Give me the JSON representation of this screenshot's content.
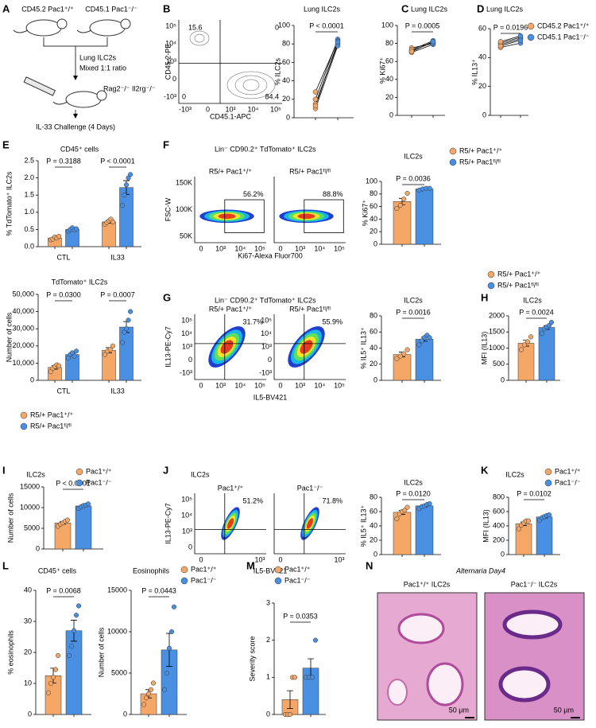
{
  "panel_letters": [
    "A",
    "B",
    "C",
    "D",
    "E",
    "F",
    "G",
    "H",
    "I",
    "J",
    "K",
    "L",
    "M",
    "N"
  ],
  "diagram": {
    "labels": [
      "CD45.2 Pac1⁺/⁺",
      "CD45.1 Pac1⁻/⁻",
      "Lung ILC2s",
      "Mixed 1:1 ratio",
      "Rag2⁻/⁻ Il2rg⁻/⁻",
      "IL-33 Challenge (4 Days)"
    ]
  },
  "flow": [
    {
      "y_label": "CD45.2-PE",
      "x_label": "CD45.1-APC",
      "yticks": [
        "10⁵",
        "10⁴",
        "10³",
        "0",
        "-10³"
      ],
      "xticks": [
        "-10³",
        "0",
        "10³",
        "10⁴",
        "10⁵"
      ],
      "plots": [
        {
          "gates": [
            "15.6",
            "0",
            "0",
            "84.4"
          ]
        }
      ]
    },
    {
      "title": "Lin⁻ CD90.2⁺ TdTomato⁺ ILC2s",
      "y_label": "FSC-W",
      "x_label": "Ki67-Alexa Fluor700",
      "yticks": [
        "150K",
        "100K",
        "50K"
      ],
      "xticks": [
        "0",
        "10³",
        "10⁴",
        "10⁵"
      ],
      "plots": [
        {
          "title": "R5/+ Pac1⁺/⁺",
          "gates": [
            "56.2%"
          ]
        },
        {
          "title": "R5/+ Pac1ᶠˡ/ᶠˡ",
          "gates": [
            "88.8%"
          ]
        }
      ]
    },
    {
      "title": "Lin⁻ CD90.2⁺ TdTomato⁺ ILC2s",
      "y_label": "IL13-PE-Cy7",
      "x_label": "IL5-BV421",
      "yticks": [
        "10⁵",
        "10⁴",
        "10³",
        "0",
        "-10³"
      ],
      "xticks": [
        "0",
        "10³",
        "10⁴",
        "10⁵"
      ],
      "plots": [
        {
          "title": "R5/+ Pac1⁺/⁺",
          "gates": [
            "31.7%"
          ]
        },
        {
          "title": "R5/+ Pac1ᶠˡ/ᶠˡ",
          "gates": [
            "55.9%"
          ]
        }
      ]
    },
    {
      "title": "ILC2s",
      "y_label": "IL13-PE-Cy7",
      "x_label": "IL5-BV421",
      "yticks": [
        "10⁵",
        "10⁴",
        "10³",
        "0"
      ],
      "xticks": [
        "0",
        "10³"
      ],
      "plots": [
        {
          "title": "Pac1⁺/⁺",
          "gates": [
            "51.2%"
          ]
        },
        {
          "title": "Pac1⁻/⁻",
          "gates": [
            "71.8%"
          ]
        }
      ]
    }
  ],
  "histology": {
    "title": "Alternaria Day4",
    "panels": [
      {
        "title": "Pac1⁺/⁺ ILC2s",
        "scale": "50 μm"
      },
      {
        "title": "Pac1⁻/⁻ ILC2s",
        "scale": "50 μm"
      }
    ]
  },
  "chart_data": [
    {
      "type": "paired",
      "title": "Lung ILC2s",
      "p_label": "P < 0.0001",
      "y_label": "% ILC2s",
      "ylim": [
        0,
        100
      ],
      "yticks": [
        0,
        20,
        40,
        60,
        80,
        100
      ],
      "series": [
        {
          "color": "#f4a767",
          "values": [
            15,
            20,
            28,
            10,
            13
          ]
        },
        {
          "color": "#4a90e2",
          "values": [
            80,
            85,
            83,
            78,
            82
          ]
        }
      ]
    },
    {
      "type": "paired",
      "title": "Lung ILC2s",
      "p_label": "P = 0.0005",
      "y_label": "% Ki67⁺",
      "ylim": [
        0,
        100
      ],
      "yticks": [
        0,
        20,
        40,
        60,
        80,
        100
      ],
      "series": [
        {
          "color": "#f4a767",
          "values": [
            70,
            72,
            75,
            73,
            71
          ]
        },
        {
          "color": "#4a90e2",
          "values": [
            79,
            81,
            80,
            83,
            82
          ]
        }
      ]
    },
    {
      "type": "paired",
      "title": "Lung ILC2s",
      "p_label": "P = 0.0196",
      "y_label": "% IL13⁺",
      "ylim": [
        0,
        60
      ],
      "yticks": [
        0,
        20,
        40,
        60
      ],
      "series": [
        {
          "name": "CD45.2 Pac1⁺/⁺",
          "color": "#f4a767",
          "values": [
            47,
            49,
            50,
            48,
            51
          ]
        },
        {
          "name": "CD45.1 Pac1⁻/⁻",
          "color": "#4a90e2",
          "values": [
            50,
            53,
            54,
            52,
            55
          ]
        }
      ]
    },
    {
      "type": "bar",
      "title": "CD45⁺ cells",
      "y_label": "% TdTomato⁺ ILC2s",
      "ylim": [
        0,
        2.5
      ],
      "yticks": [
        {
          "value": 0,
          "label": "0.0"
        },
        {
          "value": 0.5,
          "label": "0.5"
        },
        {
          "value": 1,
          "label": "1.0"
        },
        {
          "value": 1.5,
          "label": "1.5"
        },
        {
          "value": 2,
          "label": "2.0"
        },
        {
          "value": 2.5,
          "label": "2.5"
        }
      ],
      "categories": [
        "CTL",
        "IL33"
      ],
      "p_labels": [
        "P = 0.3188",
        "P < 0.0001"
      ],
      "series": [
        {
          "color": "#f4a767",
          "values": [
            0.25,
            0.72
          ],
          "errors": [
            0.03,
            0.04
          ],
          "points": [
            [
              0.2,
              0.22,
              0.28,
              0.25,
              0.3
            ],
            [
              0.65,
              0.7,
              0.75,
              0.8,
              0.72
            ]
          ]
        },
        {
          "color": "#4a90e2",
          "values": [
            0.5,
            1.72
          ],
          "errors": [
            0.04,
            0.2
          ],
          "points": [
            [
              0.45,
              0.5,
              0.55,
              0.48,
              0.52
            ],
            [
              1.2,
              1.5,
              1.8,
              2.0,
              2.1
            ]
          ]
        }
      ]
    },
    {
      "type": "bar",
      "title": "TdTomato⁺ ILC2s",
      "y_label": "Number of cells",
      "ylim": [
        0,
        50000
      ],
      "yticks": [
        0,
        {
          "value": 10000,
          "label": "10,000"
        },
        {
          "value": 20000,
          "label": "20,000"
        },
        {
          "value": 30000,
          "label": "30,000"
        },
        {
          "value": 40000,
          "label": "40,000"
        },
        {
          "value": 50000,
          "label": "50,000"
        }
      ],
      "categories": [
        "CTL",
        "IL33"
      ],
      "p_labels": [
        "P = 0.0300",
        "P = 0.0007"
      ],
      "series": [
        {
          "name": "R5/+ Pac1⁺/⁺",
          "color": "#f4a767",
          "values": [
            7500,
            17500
          ],
          "errors": [
            1000,
            1500
          ],
          "points": [
            [
              5000,
              7000,
              8000,
              9000,
              8500
            ],
            [
              15000,
              17000,
              18000,
              20000
            ]
          ]
        },
        {
          "name": "R5/+ Pac1ᶠˡ/ᶠˡ",
          "color": "#4a90e2",
          "values": [
            15000,
            31000
          ],
          "errors": [
            700,
            3200
          ],
          "points": [
            [
              13000,
              15000,
              16000,
              14000,
              17000
            ],
            [
              22000,
              28000,
              30000,
              35000,
              40000
            ]
          ]
        }
      ]
    },
    {
      "type": "bar",
      "title": "ILC2s",
      "y_label": "% Ki67⁺",
      "ylim": [
        0,
        100
      ],
      "yticks": [
        0,
        20,
        40,
        60,
        80,
        100
      ],
      "categories": [
        null
      ],
      "p_labels": [
        "P = 0.0036"
      ],
      "series": [
        {
          "name": "R5/+ Pac1⁺/⁺",
          "color": "#f4a767",
          "values": [
            68
          ],
          "errors": [
            5
          ],
          "points": [
            [
              57,
              62,
              72,
              81
            ]
          ]
        },
        {
          "name": "R5/+ Pac1ᶠˡ/ᶠˡ",
          "color": "#4a90e2",
          "values": [
            88
          ],
          "errors": [
            1
          ],
          "points": [
            [
              86,
              88,
              89,
              89
            ]
          ]
        }
      ]
    },
    {
      "type": "bar",
      "title": "ILC2s",
      "y_label": "% IL5⁺ IL13⁺",
      "ylim": [
        0,
        80
      ],
      "yticks": [
        0,
        20,
        40,
        60,
        80
      ],
      "categories": [
        null
      ],
      "p_labels": [
        "P = 0.0016"
      ],
      "series": [
        {
          "color": "#f4a767",
          "values": [
            32
          ],
          "errors": [
            3
          ],
          "points": [
            [
              27,
              30,
              33,
              38
            ]
          ]
        },
        {
          "color": "#4a90e2",
          "values": [
            51
          ],
          "errors": [
            2.5
          ],
          "points": [
            [
              44,
              49,
              53,
              56,
              53
            ]
          ]
        }
      ]
    },
    {
      "type": "bar",
      "title": "ILC2s",
      "y_label": "MFI (IL13)",
      "ylim": [
        0,
        2000
      ],
      "yticks": [
        0,
        500,
        1000,
        1500,
        2000
      ],
      "categories": [
        null
      ],
      "p_labels": [
        "P = 0.0024"
      ],
      "series": [
        {
          "name": "R5/+ Pac1⁺/⁺",
          "color": "#f4a767",
          "values": [
            1150
          ],
          "errors": [
            90
          ],
          "points": [
            [
              950,
              1100,
              1200,
              1350
            ]
          ]
        },
        {
          "name": "R5/+ Pac1ᶠˡ/ᶠˡ",
          "color": "#4a90e2",
          "values": [
            1640
          ],
          "errors": [
            60
          ],
          "points": [
            [
              1450,
              1600,
              1650,
              1700,
              1800
            ]
          ]
        }
      ]
    },
    {
      "type": "bar",
      "title": "ILC2s",
      "y_label": "Number of cells",
      "ylim": [
        0,
        15000
      ],
      "yticks": [
        0,
        5000,
        10000,
        15000
      ],
      "categories": [
        null
      ],
      "p_labels": [
        "P < 0.0001"
      ],
      "series": [
        {
          "name": "Pac1⁺/⁺",
          "color": "#f4a767",
          "values": [
            6300
          ],
          "errors": [
            300
          ],
          "points": [
            [
              5500,
              6000,
              6300,
              6700,
              7000
            ]
          ]
        },
        {
          "name": "Pac1⁻/⁻",
          "color": "#4a90e2",
          "values": [
            10400
          ],
          "errors": [
            250
          ],
          "points": [
            [
              9800,
              10200,
              10500,
              10600,
              10900
            ]
          ]
        }
      ]
    },
    {
      "type": "bar",
      "title": "ILC2s",
      "y_label": "% IL5⁺ IL13⁺",
      "ylim": [
        0,
        80
      ],
      "yticks": [
        0,
        20,
        40,
        60,
        80
      ],
      "categories": [
        null
      ],
      "p_labels": [
        "P = 0.0120"
      ],
      "series": [
        {
          "color": "#f4a767",
          "values": [
            59
          ],
          "errors": [
            2.8
          ],
          "points": [
            [
              50,
              57,
              60,
              62,
              66
            ]
          ]
        },
        {
          "color": "#4a90e2",
          "values": [
            68
          ],
          "errors": [
            1.5
          ],
          "points": [
            [
              64,
              67,
              68,
              70,
              71
            ]
          ]
        }
      ]
    },
    {
      "type": "bar",
      "title": "ILC2s",
      "y_label": "MFI (IL13)",
      "ylim": [
        0,
        800
      ],
      "yticks": [
        0,
        200,
        400,
        600,
        800
      ],
      "categories": [
        null
      ],
      "p_labels": [
        "P = 0.0102"
      ],
      "series": [
        {
          "name": "Pac1⁺/⁺",
          "color": "#f4a767",
          "values": [
            430
          ],
          "errors": [
            25
          ],
          "points": [
            [
              360,
              410,
              440,
              470,
              470
            ]
          ]
        },
        {
          "name": "Pac1⁻/⁻",
          "color": "#4a90e2",
          "values": [
            525
          ],
          "errors": [
            15
          ],
          "points": [
            [
              480,
              515,
              530,
              545,
              555
            ]
          ]
        }
      ]
    },
    {
      "type": "bar",
      "title": "CD45⁺ cells",
      "y_label": "% eosinophils",
      "ylim": [
        0,
        40
      ],
      "yticks": [
        0,
        10,
        20,
        30,
        40
      ],
      "categories": [
        null
      ],
      "p_labels": [
        "P = 0.0068"
      ],
      "series": [
        {
          "color": "#f4a767",
          "values": [
            12.5
          ],
          "errors": [
            2.4
          ],
          "points": [
            [
              7,
              10,
              12,
              14.5,
              19
            ]
          ]
        },
        {
          "color": "#4a90e2",
          "values": [
            27
          ],
          "errors": [
            3.4
          ],
          "points": [
            [
              19,
              22,
              27,
              32,
              35
            ]
          ]
        }
      ]
    },
    {
      "type": "bar",
      "title": "Eosinophils",
      "y_label": "Number of cells",
      "ylim": [
        0,
        15000
      ],
      "yticks": [
        0,
        5000,
        10000,
        15000
      ],
      "categories": [
        null
      ],
      "p_labels": [
        "P = 0.0443"
      ],
      "series": [
        {
          "name": "Pac1⁺/⁺",
          "color": "#f4a767",
          "values": [
            2500
          ],
          "errors": [
            500
          ],
          "points": [
            [
              1200,
              2000,
              2500,
              3000,
              3800
            ]
          ]
        },
        {
          "name": "Pac1⁻/⁻",
          "color": "#4a90e2",
          "values": [
            7800
          ],
          "errors": [
            2000
          ],
          "points": [
            [
              3000,
              5000,
              8000,
              10000,
              13000
            ]
          ]
        }
      ]
    },
    {
      "type": "bar",
      "y_label": "Severity score",
      "ylim": [
        0,
        3
      ],
      "yticks": [
        0,
        1,
        2,
        3
      ],
      "categories": [
        null
      ],
      "p_labels": [
        "P = 0.0353"
      ],
      "series": [
        {
          "name": "Pac1⁺/⁺",
          "color": "#f4a767",
          "values": [
            0.4
          ],
          "errors": [
            0.24
          ],
          "points": [
            [
              0,
              0,
              0,
              1,
              1
            ]
          ]
        },
        {
          "name": "Pac1⁻/⁻",
          "color": "#4a90e2",
          "values": [
            1.25
          ],
          "errors": [
            0.25
          ],
          "points": [
            [
              1,
              1,
              1,
              2
            ]
          ]
        }
      ]
    }
  ]
}
